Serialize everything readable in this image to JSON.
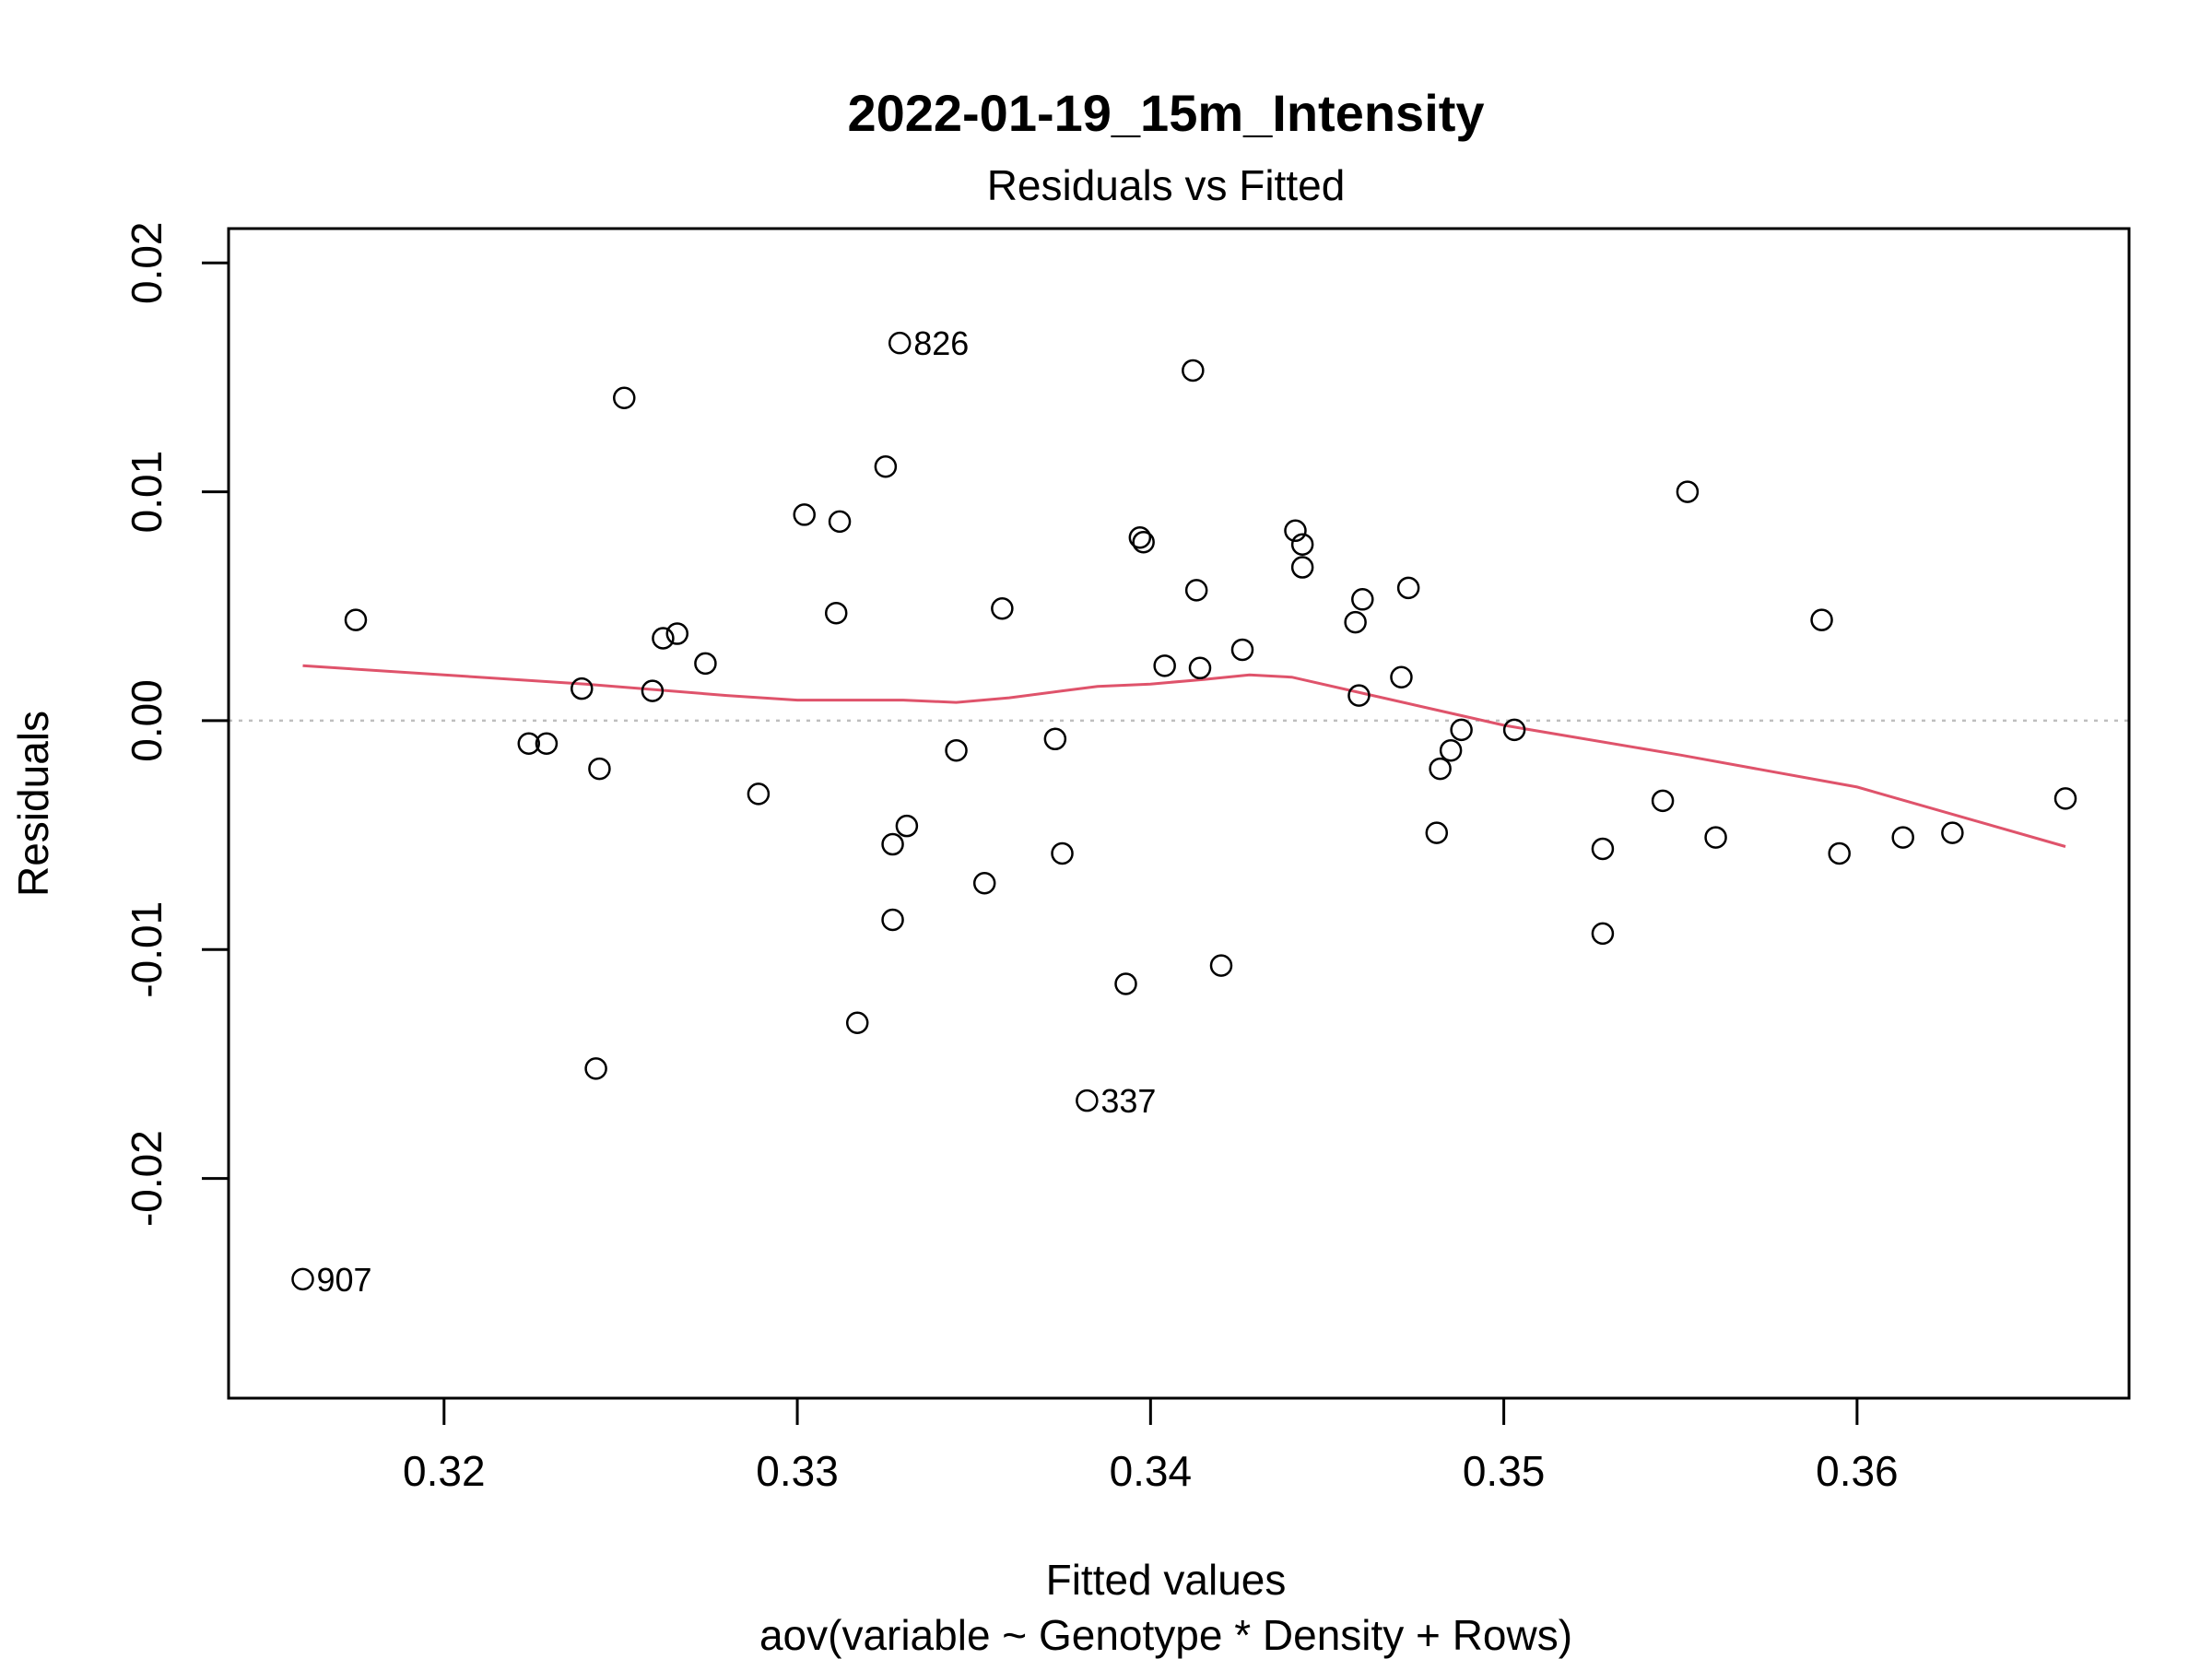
{
  "chart_data": {
    "type": "scatter",
    "title": "2022-01-19_15m_Intensity",
    "subtitle": "Residuals vs Fitted",
    "xlabel": "Fitted values",
    "xlabel_sub": "aov(variable ~ Genotype * Density + Rows)",
    "ylabel": "Residuals",
    "xlim": [
      0.3139,
      0.3677
    ],
    "ylim": [
      -0.0296,
      0.0215
    ],
    "x_ticks": [
      0.32,
      0.33,
      0.34,
      0.35,
      0.36
    ],
    "x_tick_labels": [
      "0.32",
      "0.33",
      "0.34",
      "0.35",
      "0.36"
    ],
    "y_ticks": [
      -0.02,
      -0.01,
      0.0,
      0.01,
      0.02
    ],
    "y_tick_labels": [
      "-0.02",
      "-0.01",
      "0.00",
      "0.01",
      "0.02"
    ],
    "reference_line_y": 0,
    "colors": {
      "points": "#000000",
      "smooth": "#DF536B",
      "reference": "#BEBEBE",
      "frame": "#000000"
    },
    "points": [
      {
        "x": 0.316,
        "y": -0.0244,
        "label": "907"
      },
      {
        "x": 0.3175,
        "y": 0.0044
      },
      {
        "x": 0.3224,
        "y": -0.001
      },
      {
        "x": 0.3229,
        "y": -0.001
      },
      {
        "x": 0.3239,
        "y": 0.0014
      },
      {
        "x": 0.3243,
        "y": -0.0152
      },
      {
        "x": 0.3244,
        "y": -0.0021
      },
      {
        "x": 0.3251,
        "y": 0.0141
      },
      {
        "x": 0.3259,
        "y": 0.0013
      },
      {
        "x": 0.3262,
        "y": 0.0036
      },
      {
        "x": 0.3266,
        "y": 0.0038
      },
      {
        "x": 0.3274,
        "y": 0.0025
      },
      {
        "x": 0.3289,
        "y": -0.0032
      },
      {
        "x": 0.3302,
        "y": 0.009
      },
      {
        "x": 0.3311,
        "y": 0.0047
      },
      {
        "x": 0.3312,
        "y": 0.0087
      },
      {
        "x": 0.3317,
        "y": -0.0132
      },
      {
        "x": 0.3325,
        "y": 0.0111
      },
      {
        "x": 0.3327,
        "y": -0.0054
      },
      {
        "x": 0.3327,
        "y": -0.0087
      },
      {
        "x": 0.3329,
        "y": 0.0165,
        "label": "826"
      },
      {
        "x": 0.3331,
        "y": -0.0046
      },
      {
        "x": 0.3345,
        "y": -0.0013
      },
      {
        "x": 0.3353,
        "y": -0.0071
      },
      {
        "x": 0.3358,
        "y": 0.0049
      },
      {
        "x": 0.3373,
        "y": -0.0008
      },
      {
        "x": 0.3375,
        "y": -0.0058
      },
      {
        "x": 0.3382,
        "y": -0.0166,
        "label": "337"
      },
      {
        "x": 0.3393,
        "y": -0.0115
      },
      {
        "x": 0.3397,
        "y": 0.008
      },
      {
        "x": 0.3398,
        "y": 0.0078
      },
      {
        "x": 0.3404,
        "y": 0.0024
      },
      {
        "x": 0.3412,
        "y": 0.0153
      },
      {
        "x": 0.3413,
        "y": 0.0057
      },
      {
        "x": 0.3414,
        "y": 0.0023
      },
      {
        "x": 0.342,
        "y": -0.0107
      },
      {
        "x": 0.3426,
        "y": 0.0031
      },
      {
        "x": 0.3441,
        "y": 0.0083
      },
      {
        "x": 0.3443,
        "y": 0.0077
      },
      {
        "x": 0.3443,
        "y": 0.0067
      },
      {
        "x": 0.3458,
        "y": 0.0043
      },
      {
        "x": 0.3459,
        "y": 0.0011
      },
      {
        "x": 0.346,
        "y": 0.0053
      },
      {
        "x": 0.3471,
        "y": 0.0019
      },
      {
        "x": 0.3473,
        "y": 0.0058
      },
      {
        "x": 0.3481,
        "y": -0.0049
      },
      {
        "x": 0.3482,
        "y": -0.0021
      },
      {
        "x": 0.3485,
        "y": -0.0013
      },
      {
        "x": 0.3488,
        "y": -0.0004
      },
      {
        "x": 0.3503,
        "y": -0.0004
      },
      {
        "x": 0.3528,
        "y": -0.0056
      },
      {
        "x": 0.3528,
        "y": -0.0093
      },
      {
        "x": 0.3545,
        "y": -0.0035
      },
      {
        "x": 0.3552,
        "y": 0.01
      },
      {
        "x": 0.356,
        "y": -0.0051
      },
      {
        "x": 0.359,
        "y": 0.0044
      },
      {
        "x": 0.3595,
        "y": -0.0058
      },
      {
        "x": 0.3613,
        "y": -0.0051
      },
      {
        "x": 0.3627,
        "y": -0.0049
      },
      {
        "x": 0.3659,
        "y": -0.0034
      }
    ],
    "smooth_line": [
      {
        "x": 0.316,
        "y": 0.0024
      },
      {
        "x": 0.32,
        "y": 0.002
      },
      {
        "x": 0.324,
        "y": 0.0016
      },
      {
        "x": 0.328,
        "y": 0.0011
      },
      {
        "x": 0.33,
        "y": 0.0009
      },
      {
        "x": 0.333,
        "y": 0.0009
      },
      {
        "x": 0.3345,
        "y": 0.0008
      },
      {
        "x": 0.336,
        "y": 0.001
      },
      {
        "x": 0.3375,
        "y": 0.0013
      },
      {
        "x": 0.3385,
        "y": 0.0015
      },
      {
        "x": 0.34,
        "y": 0.0016
      },
      {
        "x": 0.3415,
        "y": 0.0018
      },
      {
        "x": 0.3428,
        "y": 0.002
      },
      {
        "x": 0.344,
        "y": 0.0019
      },
      {
        "x": 0.346,
        "y": 0.0012
      },
      {
        "x": 0.348,
        "y": 0.0005
      },
      {
        "x": 0.35,
        "y": -0.0002
      },
      {
        "x": 0.355,
        "y": -0.0015
      },
      {
        "x": 0.36,
        "y": -0.0029
      },
      {
        "x": 0.3659,
        "y": -0.0055
      }
    ]
  }
}
